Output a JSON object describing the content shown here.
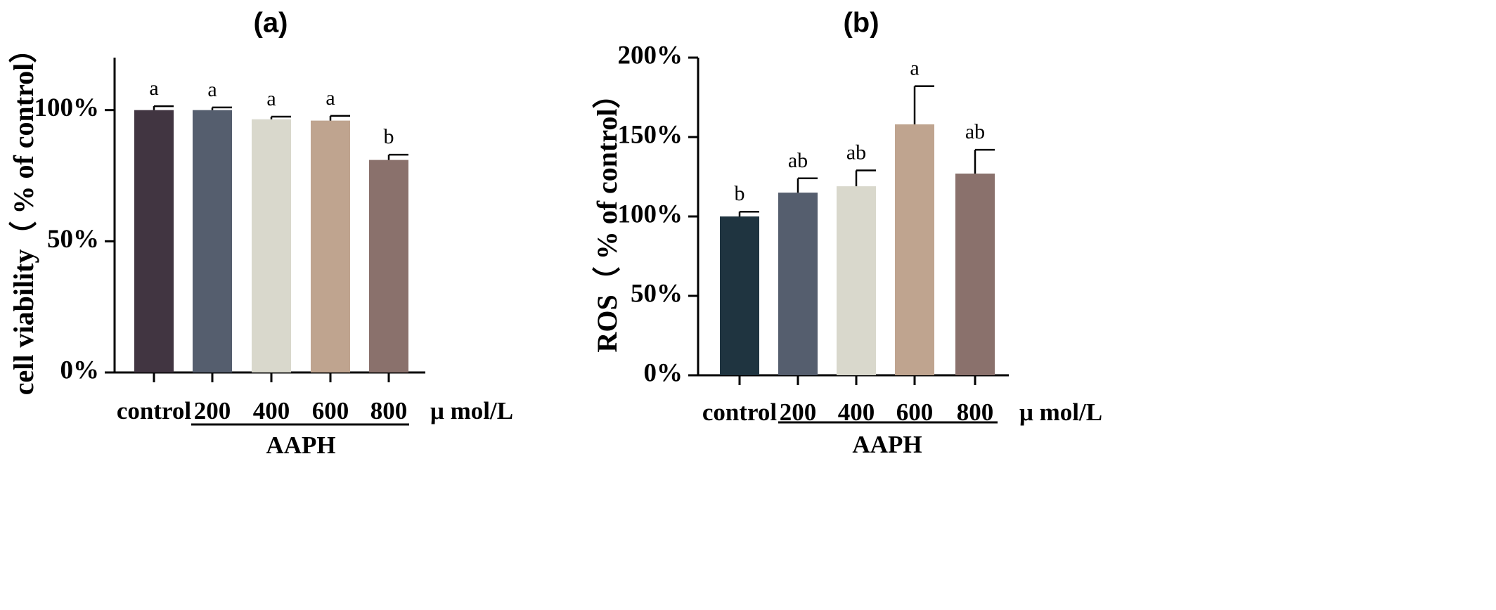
{
  "chart_data": [
    {
      "type": "bar",
      "title": "(a)",
      "ylabel": "cell viability（ % of control）",
      "categories": [
        "control",
        "200",
        "400",
        "600",
        "800"
      ],
      "unit_label": "μ mol/L",
      "group_label": "AAPH",
      "group_members": [
        "200",
        "400",
        "600",
        "800"
      ],
      "values": [
        100,
        100,
        96.5,
        96,
        81
      ],
      "errors": [
        1.5,
        1.0,
        1.0,
        1.8,
        2.0
      ],
      "significance": [
        "a",
        "a",
        "a",
        "a",
        "b"
      ],
      "colors": [
        "#413541",
        "#555e6e",
        "#d9d8cc",
        "#bfa48f",
        "#8a716c"
      ],
      "ylim": [
        0,
        120
      ],
      "yticks": [
        0,
        50,
        100
      ],
      "ytick_labels": [
        "0%",
        "50%",
        "100%"
      ]
    },
    {
      "type": "bar",
      "title": "(b)",
      "ylabel": "ROS（ % of control）",
      "categories": [
        "control",
        "200",
        "400",
        "600",
        "800"
      ],
      "unit_label": "μ mol/L",
      "group_label": "AAPH",
      "group_members": [
        "200",
        "400",
        "600",
        "800"
      ],
      "values": [
        100,
        115,
        119,
        158,
        127
      ],
      "errors": [
        3,
        9,
        10,
        24,
        15
      ],
      "significance": [
        "b",
        "ab",
        "ab",
        "a",
        "ab"
      ],
      "colors": [
        "#1f3440",
        "#555e6e",
        "#d9d8cc",
        "#bfa48f",
        "#8a716c"
      ],
      "ylim": [
        0,
        200
      ],
      "yticks": [
        0,
        50,
        100,
        150,
        200
      ],
      "ytick_labels": [
        "0%",
        "50%",
        "100%",
        "150%",
        "200%"
      ]
    }
  ]
}
